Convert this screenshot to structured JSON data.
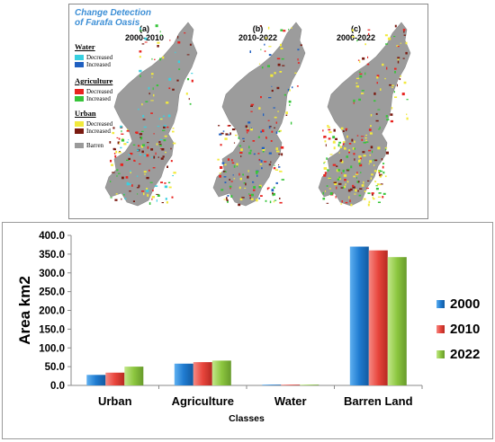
{
  "map_panel": {
    "title_line1": "Change Detection",
    "title_line2": "of Farafa Oasis",
    "maps": [
      {
        "letter": "(a)",
        "period": "2000-2010"
      },
      {
        "letter": "(b)",
        "period": "2010-2022"
      },
      {
        "letter": "(c)",
        "period": "2000-2022"
      }
    ],
    "legend": {
      "water_title": "Water",
      "water_items": [
        {
          "label": "Decreased",
          "color": "#38d0e0"
        },
        {
          "label": "Increased",
          "color": "#1f5fc0"
        }
      ],
      "agri_title": "Agriculture",
      "agri_items": [
        {
          "label": "Decreased",
          "color": "#e8231f"
        },
        {
          "label": "Increased",
          "color": "#37c43a"
        }
      ],
      "urban_title": "Urban",
      "urban_items": [
        {
          "label": "Decreased",
          "color": "#f2ea3c"
        },
        {
          "label": "Increased",
          "color": "#7a1a10"
        }
      ],
      "barren": {
        "label": "Barren",
        "color": "#9a9a9a"
      }
    }
  },
  "chart_data": {
    "type": "bar",
    "categories": [
      "Urban",
      "Agriculture",
      "Water",
      "Barren Land"
    ],
    "series": [
      {
        "name": "2000",
        "values": [
          28,
          58,
          1,
          370
        ],
        "color": "#1f7bd0"
      },
      {
        "name": "2010",
        "values": [
          34,
          62,
          0.5,
          360
        ],
        "color": "#e8453c"
      },
      {
        "name": "2022",
        "values": [
          50,
          66,
          0.5,
          342
        ],
        "color": "#8cc63f"
      }
    ],
    "xlabel": "Classes",
    "ylabel": "Area km2",
    "ylim": [
      0,
      400
    ],
    "yticks": [
      "0.0",
      "50.0",
      "100.0",
      "150.0",
      "200.0",
      "250.0",
      "300.0",
      "350.0",
      "400.0"
    ],
    "grid": false,
    "legend_placement": "right"
  }
}
